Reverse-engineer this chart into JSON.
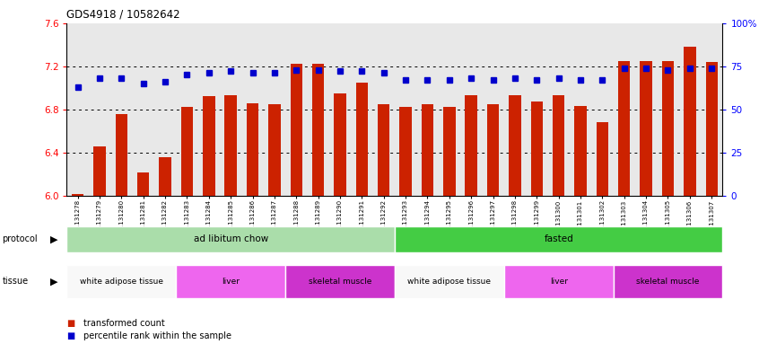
{
  "title": "GDS4918 / 10582642",
  "samples": [
    "GSM1131278",
    "GSM1131279",
    "GSM1131280",
    "GSM1131281",
    "GSM1131282",
    "GSM1131283",
    "GSM1131284",
    "GSM1131285",
    "GSM1131286",
    "GSM1131287",
    "GSM1131288",
    "GSM1131289",
    "GSM1131290",
    "GSM1131291",
    "GSM1131292",
    "GSM1131293",
    "GSM1131294",
    "GSM1131295",
    "GSM1131296",
    "GSM1131297",
    "GSM1131298",
    "GSM1131299",
    "GSM1131300",
    "GSM1131301",
    "GSM1131302",
    "GSM1131303",
    "GSM1131304",
    "GSM1131305",
    "GSM1131306",
    "GSM1131307"
  ],
  "bar_values": [
    6.02,
    6.46,
    6.76,
    6.22,
    6.36,
    6.82,
    6.92,
    6.93,
    6.86,
    6.85,
    7.22,
    7.22,
    6.95,
    7.05,
    6.85,
    6.82,
    6.85,
    6.82,
    6.93,
    6.85,
    6.93,
    6.87,
    6.93,
    6.83,
    6.68,
    7.25,
    7.25,
    7.25,
    7.38,
    7.24
  ],
  "percentile_values": [
    63,
    68,
    68,
    65,
    66,
    70,
    71,
    72,
    71,
    71,
    73,
    73,
    72,
    72,
    71,
    67,
    67,
    67,
    68,
    67,
    68,
    67,
    68,
    67,
    67,
    74,
    74,
    73,
    74,
    74
  ],
  "bar_color": "#cc2200",
  "dot_color": "#0000cc",
  "ylim_left": [
    6.0,
    7.6
  ],
  "ylim_right": [
    0,
    100
  ],
  "yticks_left": [
    6.0,
    6.4,
    6.8,
    7.2,
    7.6
  ],
  "yticks_right": [
    0,
    25,
    50,
    75,
    100
  ],
  "grid_values": [
    6.4,
    6.8,
    7.2
  ],
  "protocol_groups": [
    {
      "label": "ad libitum chow",
      "start": 0,
      "end": 15,
      "color": "#aaddaa"
    },
    {
      "label": "fasted",
      "start": 15,
      "end": 30,
      "color": "#44cc44"
    }
  ],
  "tissue_groups": [
    {
      "label": "white adipose tissue",
      "start": 0,
      "end": 5,
      "color": "#f0f0f0"
    },
    {
      "label": "liver",
      "start": 5,
      "end": 10,
      "color": "#ee66ee"
    },
    {
      "label": "skeletal muscle",
      "start": 10,
      "end": 15,
      "color": "#cc44cc"
    },
    {
      "label": "white adipose tissue",
      "start": 15,
      "end": 20,
      "color": "#f0f0f0"
    },
    {
      "label": "liver",
      "start": 20,
      "end": 25,
      "color": "#ee66ee"
    },
    {
      "label": "skeletal muscle",
      "start": 25,
      "end": 30,
      "color": "#cc44cc"
    }
  ],
  "legend_labels": [
    "transformed count",
    "percentile rank within the sample"
  ],
  "legend_colors": [
    "#cc2200",
    "#0000cc"
  ],
  "plot_bg": "#e8e8e8",
  "fig_bg": "#ffffff"
}
